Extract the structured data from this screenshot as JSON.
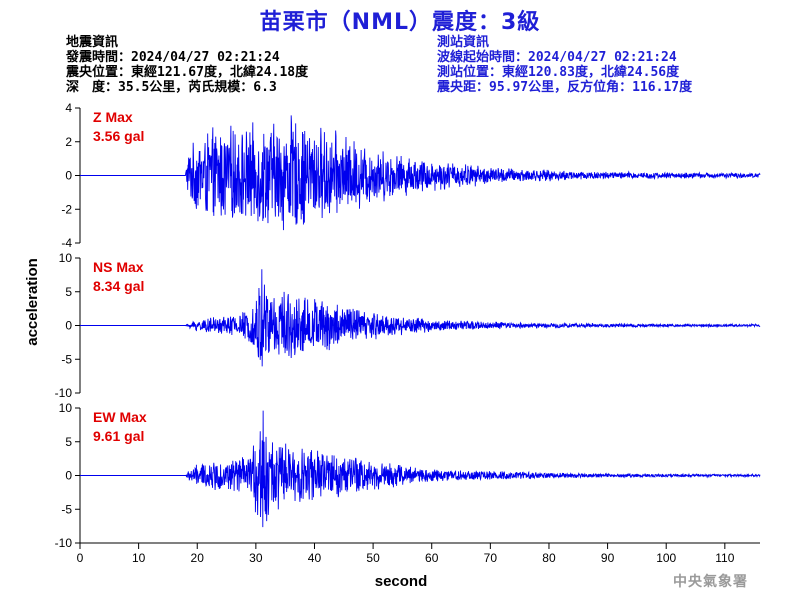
{
  "title": "苗栗市（NML）震度：3級",
  "left_info": {
    "header": "地震資訊",
    "time": "發震時間：2024/04/27 02:21:24",
    "location": "震央位置：東經121.67度，北緯24.18度",
    "depth": "深　度：35.5公里，芮氏規模：6.3"
  },
  "right_info": {
    "header": "測站資訊",
    "wave_start": "波線起始時間：2024/04/27 02:21:24",
    "station_location": "測站位置：東經120.83度，北緯24.56度",
    "distance": "震央距：95.97公里，反方位角：116.17度"
  },
  "credit": "中央氣象署",
  "colors": {
    "title": "#1f1fd6",
    "trace": "#0000ee",
    "max_label": "#e00000"
  },
  "chart_data": [
    {
      "type": "line",
      "component": "Z",
      "max_label": "Z Max",
      "max_value": "3.56 gal",
      "ylim": [
        -4,
        4
      ],
      "yticks": [
        -4,
        -2,
        0,
        2,
        4
      ],
      "xlim": [
        0,
        116
      ],
      "onset": 18,
      "peak": 3.56,
      "envelope": [
        [
          0,
          0
        ],
        [
          17.8,
          0
        ],
        [
          18.5,
          1.6
        ],
        [
          20,
          2.4
        ],
        [
          22,
          2.9
        ],
        [
          25,
          3.1
        ],
        [
          28,
          3.0
        ],
        [
          32,
          3.4
        ],
        [
          36,
          3.56
        ],
        [
          40,
          3.2
        ],
        [
          45,
          2.6
        ],
        [
          50,
          1.8
        ],
        [
          55,
          1.3
        ],
        [
          60,
          1.0
        ],
        [
          65,
          0.8
        ],
        [
          70,
          0.55
        ],
        [
          80,
          0.35
        ],
        [
          90,
          0.25
        ],
        [
          100,
          0.2
        ],
        [
          116,
          0.15
        ]
      ]
    },
    {
      "type": "line",
      "component": "NS",
      "max_label": "NS Max",
      "max_value": "8.34 gal",
      "ylim": [
        -10,
        10
      ],
      "yticks": [
        -10,
        -5,
        0,
        5,
        10
      ],
      "xlim": [
        0,
        116
      ],
      "onset": 18,
      "peak": 8.34,
      "envelope": [
        [
          0,
          0
        ],
        [
          18,
          0
        ],
        [
          19,
          0.8
        ],
        [
          22,
          1.2
        ],
        [
          26,
          1.8
        ],
        [
          29,
          2.5
        ],
        [
          30.5,
          6.5
        ],
        [
          31,
          8.34
        ],
        [
          32,
          6.5
        ],
        [
          35,
          5.5
        ],
        [
          40,
          4.5
        ],
        [
          45,
          3.6
        ],
        [
          50,
          2.3
        ],
        [
          55,
          1.5
        ],
        [
          60,
          1.0
        ],
        [
          70,
          0.6
        ],
        [
          80,
          0.4
        ],
        [
          90,
          0.3
        ],
        [
          116,
          0.2
        ]
      ]
    },
    {
      "type": "line",
      "component": "EW",
      "max_label": "EW Max",
      "max_value": "9.61 gal",
      "ylim": [
        -10,
        10
      ],
      "yticks": [
        -10,
        -5,
        0,
        5,
        10
      ],
      "xlim": [
        0,
        116
      ],
      "onset": 18,
      "peak": 9.61,
      "envelope": [
        [
          0,
          0
        ],
        [
          18,
          0
        ],
        [
          19,
          1.5
        ],
        [
          22,
          2.2
        ],
        [
          26,
          2.6
        ],
        [
          29,
          3.2
        ],
        [
          30.5,
          8.0
        ],
        [
          31.2,
          9.61
        ],
        [
          32,
          7.0
        ],
        [
          35,
          5.0
        ],
        [
          40,
          4.2
        ],
        [
          45,
          3.6
        ],
        [
          50,
          2.6
        ],
        [
          55,
          1.7
        ],
        [
          60,
          1.1
        ],
        [
          70,
          0.7
        ],
        [
          80,
          0.45
        ],
        [
          90,
          0.3
        ],
        [
          116,
          0.2
        ]
      ]
    }
  ],
  "x_axis": {
    "label": "second",
    "ticks": [
      0,
      10,
      20,
      30,
      40,
      50,
      60,
      70,
      80,
      90,
      100,
      110
    ]
  },
  "y_axis": {
    "label": "acceleration"
  }
}
